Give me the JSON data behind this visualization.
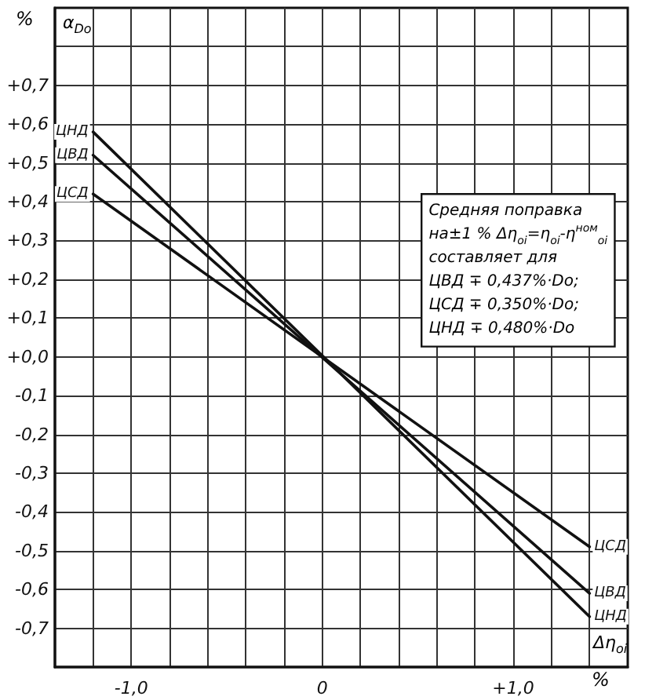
{
  "chart_data": {
    "type": "line",
    "xlabel": "%",
    "ylabel": "%",
    "annotations": [
      "α$_{Do}$",
      "Δη$_{oi}$",
      "Средняя поправка\nна±1 % Δη$_{oi}$=η$_{oi}$-η$^{ном}$$_{oi}$\nсоставляет для\nЦВД ∓ 0,437%·Do;\nЦСД ∓ 0,350%·Do;\nЦНД ∓ 0,480%·Do"
    ],
    "x": [
      -1.2,
      1.4
    ],
    "series": [
      {
        "name": "ЦВД",
        "color": "#111111",
        "values": [
          0.52,
          -0.61
        ]
      },
      {
        "name": "ЦСД",
        "color": "#111111",
        "values": [
          0.42,
          -0.49
        ]
      },
      {
        "name": "ЦНД",
        "color": "#111111",
        "values": [
          0.58,
          -0.67
        ]
      }
    ],
    "xlim": [
      -1.4,
      1.6
    ],
    "xticks": [
      {
        "value": -1.2,
        "label": null
      },
      {
        "value": -1.0,
        "label": "-1,0"
      },
      {
        "value": -0.8,
        "label": null
      },
      {
        "value": -0.6,
        "label": null
      },
      {
        "value": -0.4,
        "label": null
      },
      {
        "value": -0.2,
        "label": null
      },
      0,
      {
        "value": 0.2,
        "label": null
      },
      {
        "value": 0.4,
        "label": null
      },
      {
        "value": 0.6,
        "label": null
      },
      {
        "value": 0.8,
        "label": null
      },
      {
        "value": 1.0,
        "label": "+1,0"
      },
      {
        "value": 1.2,
        "label": null
      },
      {
        "value": 1.4,
        "label": null
      }
    ],
    "ylim": [
      -0.8,
      0.9
    ],
    "yticks": [
      {
        "value": -0.7,
        "label": "-0,7"
      },
      {
        "value": -0.6,
        "label": "-0,6"
      },
      {
        "value": -0.5,
        "label": "-0,5"
      },
      {
        "value": -0.4,
        "label": "-0,4"
      },
      {
        "value": -0.3,
        "label": "-0,3"
      },
      {
        "value": -0.2,
        "label": "-0,2"
      },
      {
        "value": -0.1,
        "label": "-0,1"
      },
      {
        "value": 0,
        "label": "+0,0"
      },
      {
        "value": 0.1,
        "label": "+0,1"
      },
      {
        "value": 0.2,
        "label": "+0,2"
      },
      {
        "value": 0.3,
        "label": "+0,3"
      },
      {
        "value": 0.4,
        "label": "+0,4"
      },
      {
        "value": 0.5,
        "label": "+0,5"
      },
      {
        "value": 0.6,
        "label": "+0,6"
      },
      {
        "value": 0.7,
        "label": "+0,7"
      },
      {
        "value": 0.8,
        "label": null
      }
    ],
    "grid": true,
    "legend": false,
    "marker": "none",
    "line_style": "solid"
  }
}
